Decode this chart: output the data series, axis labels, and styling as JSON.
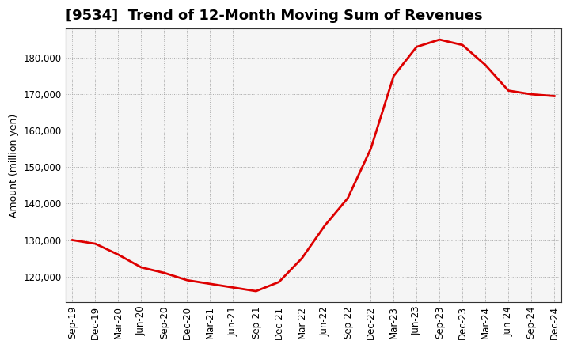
{
  "title": "[9534]  Trend of 12-Month Moving Sum of Revenues",
  "ylabel": "Amount (million yen)",
  "line_color": "#dd0000",
  "background_color": "#ffffff",
  "plot_bg_color": "#f5f5f5",
  "grid_color": "#999999",
  "x_labels": [
    "Sep-19",
    "Dec-19",
    "Mar-20",
    "Jun-20",
    "Sep-20",
    "Dec-20",
    "Mar-21",
    "Jun-21",
    "Sep-21",
    "Dec-21",
    "Mar-22",
    "Jun-22",
    "Sep-22",
    "Dec-22",
    "Mar-23",
    "Jun-23",
    "Sep-23",
    "Dec-23",
    "Mar-24",
    "Jun-24",
    "Sep-24",
    "Dec-24"
  ],
  "y_values": [
    130000,
    129000,
    126000,
    122500,
    121000,
    119000,
    118000,
    117000,
    116000,
    118500,
    125000,
    134000,
    141500,
    155000,
    175000,
    183000,
    185000,
    183500,
    178000,
    171000,
    170000,
    169500
  ],
  "ylim": [
    113000,
    188000
  ],
  "yticks": [
    120000,
    130000,
    140000,
    150000,
    160000,
    170000,
    180000
  ],
  "title_fontsize": 13,
  "ylabel_fontsize": 9,
  "tick_fontsize": 8.5
}
